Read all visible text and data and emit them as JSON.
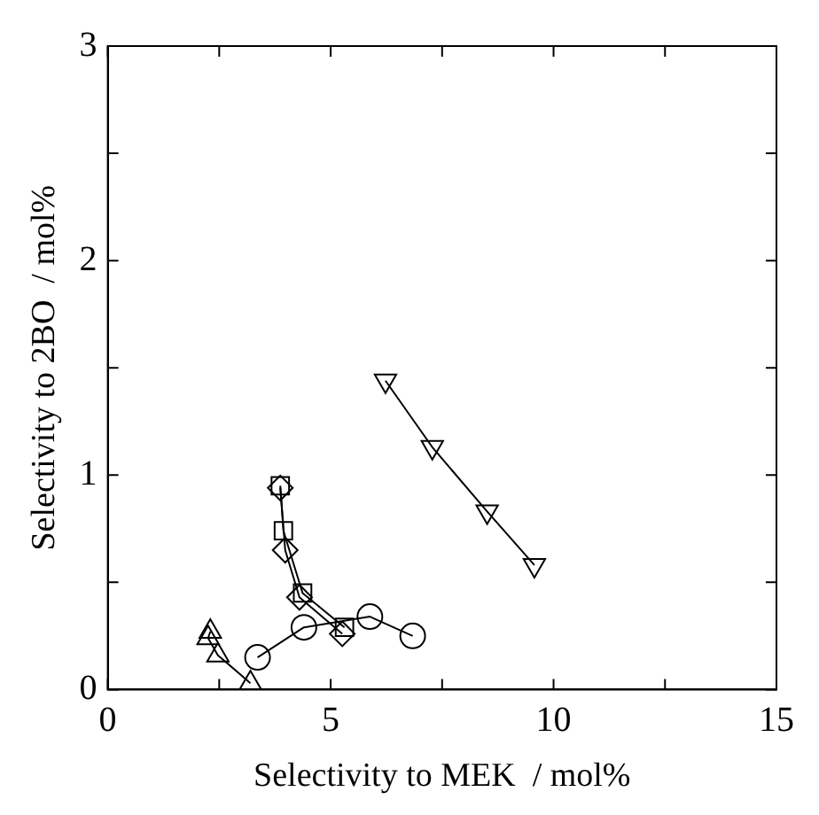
{
  "chart_data": {
    "type": "line",
    "xlabel": "Selectivity to MEK  / mol%",
    "ylabel": "Selectivity to 2BO  / mol%",
    "xlim": [
      0,
      15
    ],
    "xticks": [
      0,
      {
        "value": 2.5,
        "label": null
      },
      5,
      {
        "value": 7.5,
        "label": null
      },
      10,
      {
        "value": 12.5,
        "label": null
      },
      15
    ],
    "ylim": [
      0,
      3
    ],
    "yticks": [
      0,
      {
        "value": 0.5,
        "label": null
      },
      1,
      {
        "value": 1.5,
        "label": null
      },
      2,
      {
        "value": 2.5,
        "label": null
      },
      3
    ],
    "grid": false,
    "legend": false,
    "line_style": "solid",
    "series": [
      {
        "color": "#000000",
        "marker": "circle",
        "x": [
          3.36,
          4.4,
          5.88,
          6.84
        ],
        "values": [
          0.15,
          0.29,
          0.34,
          0.25
        ]
      },
      {
        "color": "#000000",
        "marker": "square",
        "x": [
          3.87,
          3.94,
          4.37,
          5.31
        ],
        "values": [
          0.95,
          0.74,
          0.45,
          0.29
        ]
      },
      {
        "color": "#000000",
        "marker": "diamond",
        "x": [
          3.87,
          3.98,
          4.3,
          5.26
        ],
        "values": [
          0.94,
          0.65,
          0.43,
          0.26
        ]
      },
      {
        "color": "#000000",
        "marker": "triangle",
        "x": [
          2.3,
          2.25,
          2.47,
          3.2
        ],
        "values": [
          0.27,
          0.24,
          0.16,
          0.03
        ]
      },
      {
        "color": "#000000",
        "marker": "triangle_down",
        "x": [
          6.23,
          7.28,
          8.51,
          9.57
        ],
        "values": [
          1.44,
          1.13,
          0.83,
          0.58
        ]
      }
    ]
  }
}
